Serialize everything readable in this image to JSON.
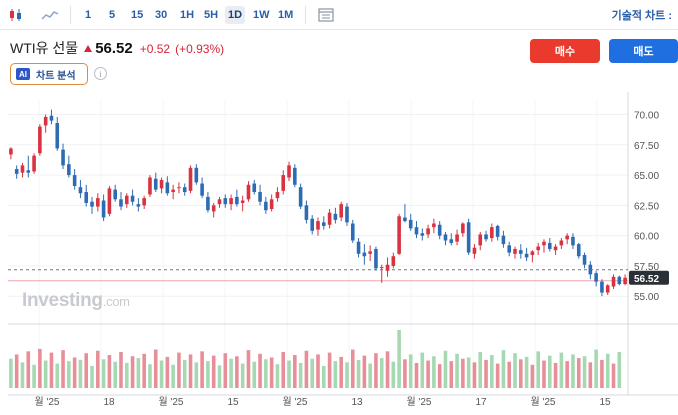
{
  "instrument": {
    "name": "WTI유 선물",
    "price": "56.52",
    "change": "+0.52",
    "change_pct": "(+0.93%)",
    "direction": "up",
    "up_color": "#d8243b"
  },
  "toolbar": {
    "icons": [
      "candlestick-chart-icon",
      "area-chart-icon",
      "calendar-grid-icon"
    ],
    "timeframes": [
      "1",
      "5",
      "15",
      "30",
      "1H",
      "5H",
      "1D",
      "1W",
      "1M"
    ],
    "active_timeframe": "1D",
    "technical_link": "기술적 차트 :"
  },
  "actions": {
    "buy_label": "매수",
    "sell_label": "매도",
    "buy_color": "#ea3a2d",
    "sell_color": "#1f6fe0"
  },
  "ai": {
    "badge": "AI",
    "label": "차트 분석",
    "info_glyph": "i"
  },
  "watermark": {
    "brand": "Investing",
    "suffix": ".com"
  },
  "chart_data": {
    "type": "candlestick",
    "interval": "1D",
    "y_ticks": [
      "70.00",
      "67.50",
      "65.00",
      "62.50",
      "60.00",
      "57.50",
      "55.00"
    ],
    "ylim": [
      53.2,
      71.2
    ],
    "x_labels": [
      "월 '25",
      "18",
      "월 '25",
      "15",
      "월 '25",
      "13",
      "월 '25",
      "17",
      "월 '25",
      "15"
    ],
    "last_price": 56.52,
    "last_price_label": "56.52",
    "grid": true,
    "colors": {
      "up": "#d93240",
      "down": "#2d6cb3",
      "volume_up": "#e88e98",
      "volume_down": "#a6d8b2"
    },
    "ohlc": [
      [
        66.7,
        67.3,
        66.3,
        67.2
      ],
      [
        65.5,
        65.8,
        64.7,
        65.1
      ],
      [
        65.2,
        66.0,
        64.8,
        65.8
      ],
      [
        65.4,
        66.6,
        64.8,
        65.2
      ],
      [
        65.3,
        66.8,
        65.1,
        66.6
      ],
      [
        66.8,
        69.2,
        66.6,
        69.0
      ],
      [
        69.1,
        70.0,
        68.5,
        69.8
      ],
      [
        69.9,
        70.4,
        69.2,
        69.5
      ],
      [
        69.3,
        69.8,
        67.0,
        67.2
      ],
      [
        67.1,
        67.6,
        65.5,
        65.8
      ],
      [
        65.9,
        66.6,
        64.8,
        65.0
      ],
      [
        65.0,
        65.5,
        63.8,
        64.1
      ],
      [
        64.0,
        64.6,
        63.1,
        63.5
      ],
      [
        63.6,
        64.2,
        62.4,
        62.7
      ],
      [
        62.8,
        63.2,
        61.8,
        62.4
      ],
      [
        62.4,
        63.5,
        62.0,
        63.1
      ],
      [
        62.9,
        63.4,
        61.2,
        61.5
      ],
      [
        61.8,
        64.1,
        61.6,
        63.9
      ],
      [
        63.8,
        64.2,
        62.8,
        63.0
      ],
      [
        63.0,
        63.6,
        62.1,
        62.4
      ],
      [
        62.6,
        63.5,
        62.3,
        63.3
      ],
      [
        63.3,
        63.8,
        62.5,
        62.8
      ],
      [
        62.6,
        63.1,
        62.0,
        62.4
      ],
      [
        62.5,
        63.3,
        62.2,
        63.1
      ],
      [
        63.4,
        65.0,
        63.2,
        64.8
      ],
      [
        64.7,
        65.2,
        63.6,
        63.8
      ],
      [
        63.9,
        64.8,
        63.5,
        64.6
      ],
      [
        64.4,
        64.9,
        63.3,
        63.5
      ],
      [
        63.6,
        64.2,
        63.0,
        63.8
      ],
      [
        64.0,
        64.4,
        63.5,
        64.0
      ],
      [
        64.0,
        64.3,
        63.3,
        63.6
      ],
      [
        63.7,
        65.8,
        63.5,
        65.6
      ],
      [
        65.6,
        65.9,
        64.2,
        64.4
      ],
      [
        64.3,
        64.8,
        63.1,
        63.3
      ],
      [
        63.2,
        63.6,
        61.9,
        62.1
      ],
      [
        62.0,
        62.7,
        61.5,
        62.5
      ],
      [
        62.6,
        63.2,
        62.3,
        63.0
      ],
      [
        63.1,
        63.4,
        62.3,
        62.6
      ],
      [
        62.6,
        63.4,
        62.1,
        63.1
      ],
      [
        63.2,
        63.8,
        62.4,
        62.6
      ],
      [
        62.7,
        63.3,
        62.0,
        62.9
      ],
      [
        63.0,
        64.5,
        62.8,
        64.2
      ],
      [
        64.3,
        64.6,
        63.4,
        63.6
      ],
      [
        63.6,
        64.2,
        62.5,
        62.8
      ],
      [
        62.8,
        63.2,
        61.8,
        62.1
      ],
      [
        62.2,
        63.4,
        62.0,
        63.0
      ],
      [
        63.1,
        64.0,
        62.8,
        63.6
      ],
      [
        63.7,
        65.4,
        63.4,
        65.0
      ],
      [
        64.8,
        66.1,
        64.5,
        65.8
      ],
      [
        65.6,
        65.9,
        64.0,
        64.2
      ],
      [
        64.0,
        64.3,
        62.2,
        62.4
      ],
      [
        62.5,
        62.9,
        61.0,
        61.3
      ],
      [
        61.4,
        61.7,
        60.1,
        60.4
      ],
      [
        60.5,
        61.5,
        60.0,
        61.2
      ],
      [
        61.1,
        61.6,
        60.5,
        60.8
      ],
      [
        60.9,
        62.2,
        60.6,
        61.9
      ],
      [
        61.8,
        62.3,
        61.0,
        61.3
      ],
      [
        61.5,
        62.8,
        61.2,
        62.6
      ],
      [
        62.4,
        62.7,
        60.8,
        61.1
      ],
      [
        61.0,
        61.3,
        59.4,
        59.6
      ],
      [
        59.5,
        59.8,
        58.2,
        58.5
      ],
      [
        58.6,
        59.3,
        57.6,
        58.3
      ],
      [
        58.5,
        59.2,
        57.9,
        58.7
      ],
      [
        58.9,
        59.1,
        57.1,
        57.3
      ],
      [
        57.4,
        57.6,
        56.1,
        57.4
      ],
      [
        57.1,
        58.2,
        56.6,
        57.6
      ],
      [
        57.5,
        58.6,
        57.3,
        58.3
      ],
      [
        58.5,
        61.8,
        58.4,
        61.6
      ],
      [
        61.5,
        62.6,
        61.1,
        61.2
      ],
      [
        61.3,
        61.8,
        60.4,
        60.6
      ],
      [
        60.7,
        61.2,
        59.8,
        60.1
      ],
      [
        60.2,
        60.6,
        59.6,
        60.0
      ],
      [
        60.1,
        60.9,
        59.8,
        60.6
      ],
      [
        60.7,
        61.4,
        60.2,
        61.0
      ],
      [
        60.9,
        61.2,
        59.7,
        60.0
      ],
      [
        60.1,
        60.3,
        59.2,
        59.6
      ],
      [
        59.7,
        60.2,
        59.2,
        59.4
      ],
      [
        59.5,
        60.5,
        59.2,
        60.1
      ],
      [
        60.2,
        61.1,
        59.9,
        61.0
      ],
      [
        61.1,
        61.4,
        58.4,
        58.6
      ],
      [
        58.5,
        59.3,
        58.1,
        59.0
      ],
      [
        59.2,
        60.3,
        58.8,
        60.1
      ],
      [
        60.1,
        60.4,
        59.5,
        59.7
      ],
      [
        59.8,
        61.0,
        59.5,
        60.7
      ],
      [
        60.8,
        60.9,
        59.6,
        59.9
      ],
      [
        60.0,
        60.4,
        59.0,
        59.3
      ],
      [
        59.2,
        59.5,
        58.3,
        58.6
      ],
      [
        58.5,
        59.1,
        58.1,
        58.9
      ],
      [
        58.8,
        59.3,
        58.1,
        58.5
      ],
      [
        58.5,
        59.0,
        57.9,
        58.2
      ],
      [
        58.4,
        58.8,
        57.8,
        58.7
      ],
      [
        58.8,
        59.4,
        58.4,
        59.1
      ],
      [
        59.2,
        59.7,
        58.6,
        59.5
      ],
      [
        59.4,
        59.8,
        58.7,
        58.9
      ],
      [
        58.8,
        59.3,
        58.4,
        59.1
      ],
      [
        59.2,
        59.8,
        58.9,
        59.6
      ],
      [
        59.7,
        60.2,
        59.3,
        60.0
      ],
      [
        59.9,
        60.2,
        58.9,
        59.2
      ],
      [
        59.3,
        59.4,
        58.1,
        58.3
      ],
      [
        58.4,
        58.6,
        57.3,
        57.6
      ],
      [
        57.6,
        57.9,
        56.4,
        56.8
      ],
      [
        56.9,
        57.1,
        55.8,
        56.2
      ],
      [
        56.2,
        56.4,
        55.0,
        55.3
      ],
      [
        55.3,
        56.0,
        55.1,
        55.9
      ],
      [
        55.8,
        56.8,
        55.6,
        56.6
      ],
      [
        56.6,
        56.7,
        55.9,
        56.0
      ],
      [
        56.0,
        56.8,
        55.9,
        56.52
      ]
    ],
    "volume": [
      [
        48,
        "down"
      ],
      [
        55,
        "up"
      ],
      [
        42,
        "down"
      ],
      [
        60,
        "up"
      ],
      [
        38,
        "down"
      ],
      [
        64,
        "up"
      ],
      [
        45,
        "down"
      ],
      [
        58,
        "up"
      ],
      [
        40,
        "down"
      ],
      [
        62,
        "up"
      ],
      [
        44,
        "down"
      ],
      [
        50,
        "up"
      ],
      [
        46,
        "down"
      ],
      [
        57,
        "up"
      ],
      [
        36,
        "down"
      ],
      [
        61,
        "up"
      ],
      [
        47,
        "down"
      ],
      [
        54,
        "up"
      ],
      [
        43,
        "down"
      ],
      [
        59,
        "up"
      ],
      [
        41,
        "down"
      ],
      [
        52,
        "up"
      ],
      [
        49,
        "down"
      ],
      [
        56,
        "up"
      ],
      [
        39,
        "down"
      ],
      [
        63,
        "up"
      ],
      [
        45,
        "down"
      ],
      [
        51,
        "up"
      ],
      [
        38,
        "down"
      ],
      [
        58,
        "up"
      ],
      [
        46,
        "down"
      ],
      [
        55,
        "up"
      ],
      [
        42,
        "down"
      ],
      [
        60,
        "up"
      ],
      [
        44,
        "down"
      ],
      [
        53,
        "up"
      ],
      [
        37,
        "down"
      ],
      [
        57,
        "up"
      ],
      [
        48,
        "down"
      ],
      [
        52,
        "up"
      ],
      [
        40,
        "down"
      ],
      [
        62,
        "up"
      ],
      [
        43,
        "down"
      ],
      [
        56,
        "up"
      ],
      [
        47,
        "down"
      ],
      [
        50,
        "up"
      ],
      [
        39,
        "down"
      ],
      [
        59,
        "up"
      ],
      [
        45,
        "down"
      ],
      [
        54,
        "up"
      ],
      [
        41,
        "down"
      ],
      [
        61,
        "up"
      ],
      [
        48,
        "down"
      ],
      [
        55,
        "up"
      ],
      [
        36,
        "down"
      ],
      [
        58,
        "up"
      ],
      [
        44,
        "down"
      ],
      [
        51,
        "up"
      ],
      [
        42,
        "down"
      ],
      [
        63,
        "up"
      ],
      [
        46,
        "down"
      ],
      [
        53,
        "up"
      ],
      [
        40,
        "down"
      ],
      [
        57,
        "up"
      ],
      [
        49,
        "down"
      ],
      [
        60,
        "up"
      ],
      [
        43,
        "down"
      ],
      [
        95,
        "down"
      ],
      [
        47,
        "up"
      ],
      [
        55,
        "down"
      ],
      [
        41,
        "up"
      ],
      [
        58,
        "down"
      ],
      [
        45,
        "up"
      ],
      [
        52,
        "down"
      ],
      [
        39,
        "up"
      ],
      [
        61,
        "down"
      ],
      [
        44,
        "up"
      ],
      [
        56,
        "down"
      ],
      [
        48,
        "up"
      ],
      [
        50,
        "down"
      ],
      [
        42,
        "up"
      ],
      [
        59,
        "down"
      ],
      [
        46,
        "up"
      ],
      [
        54,
        "down"
      ],
      [
        40,
        "up"
      ],
      [
        62,
        "down"
      ],
      [
        43,
        "up"
      ],
      [
        57,
        "down"
      ],
      [
        47,
        "up"
      ],
      [
        51,
        "down"
      ],
      [
        38,
        "up"
      ],
      [
        60,
        "down"
      ],
      [
        45,
        "up"
      ],
      [
        53,
        "down"
      ],
      [
        41,
        "up"
      ],
      [
        58,
        "down"
      ],
      [
        44,
        "up"
      ],
      [
        55,
        "down"
      ],
      [
        49,
        "up"
      ],
      [
        52,
        "down"
      ],
      [
        42,
        "up"
      ],
      [
        63,
        "down"
      ],
      [
        46,
        "up"
      ],
      [
        56,
        "down"
      ],
      [
        40,
        "up"
      ],
      [
        59,
        "down"
      ]
    ]
  }
}
